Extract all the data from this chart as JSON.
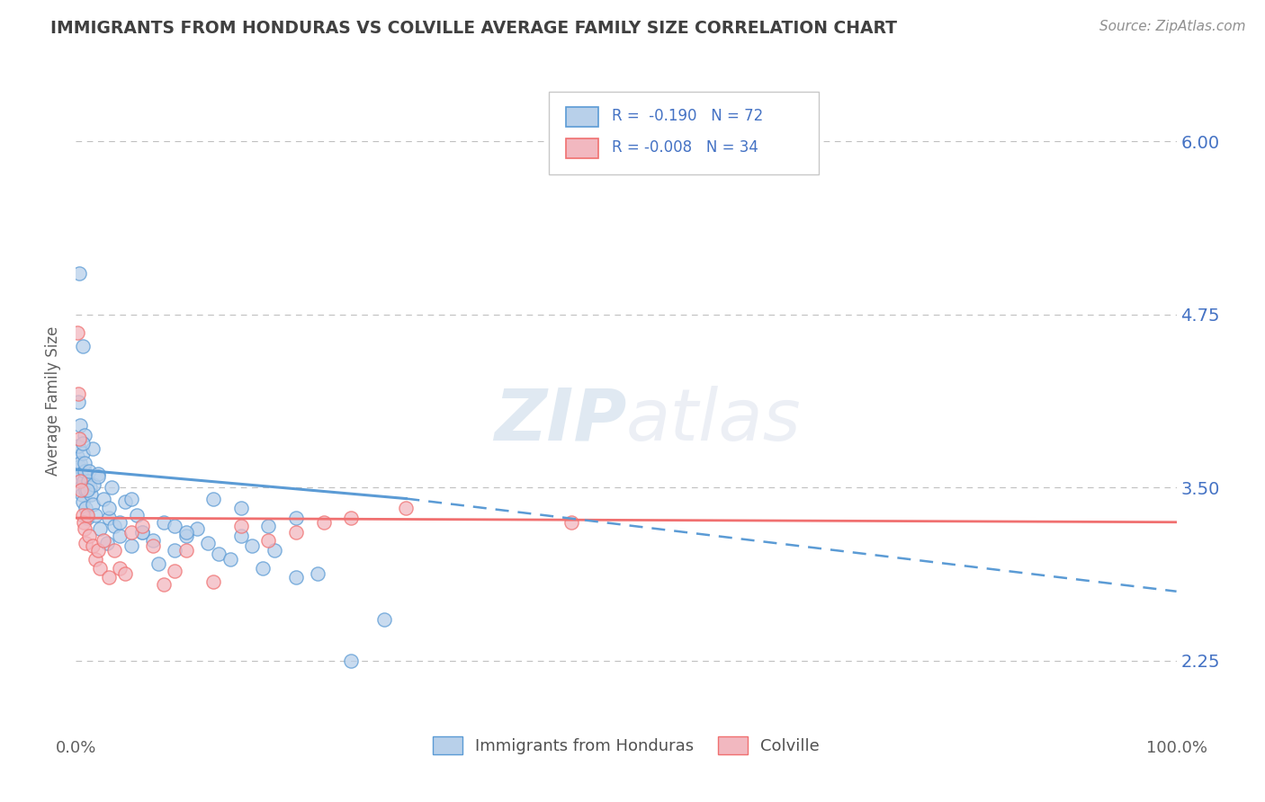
{
  "title": "IMMIGRANTS FROM HONDURAS VS COLVILLE AVERAGE FAMILY SIZE CORRELATION CHART",
  "source_text": "Source: ZipAtlas.com",
  "ylabel": "Average Family Size",
  "watermark": "ZIPatlas",
  "xlim": [
    0.0,
    100.0
  ],
  "ylim": [
    1.75,
    6.5
  ],
  "yticks": [
    2.25,
    3.5,
    4.75,
    6.0
  ],
  "xticklabels": [
    "0.0%",
    "100.0%"
  ],
  "xtick_vals": [
    0.0,
    100.0
  ],
  "legend_line1": "R =  -0.190   N = 72",
  "legend_line2": "R = -0.008   N = 34",
  "blue_color": "#5b9bd5",
  "pink_color": "#f07070",
  "blue_fill": "#b8d0ea",
  "pink_fill": "#f2b8c0",
  "title_color": "#404040",
  "right_tick_color": "#4472C4",
  "legend_text_color": "#4472C4",
  "source_color": "#909090",
  "grid_color": "#c0c0c0",
  "blue_scatter": [
    [
      0.15,
      3.72
    ],
    [
      0.2,
      3.58
    ],
    [
      0.25,
      3.8
    ],
    [
      0.3,
      3.65
    ],
    [
      0.35,
      3.55
    ],
    [
      0.4,
      3.68
    ],
    [
      0.45,
      3.6
    ],
    [
      0.5,
      3.5
    ],
    [
      0.55,
      3.45
    ],
    [
      0.6,
      3.75
    ],
    [
      0.65,
      3.4
    ],
    [
      0.7,
      3.55
    ],
    [
      0.75,
      3.62
    ],
    [
      0.8,
      3.68
    ],
    [
      0.85,
      3.48
    ],
    [
      0.9,
      3.35
    ],
    [
      1.0,
      3.28
    ],
    [
      1.1,
      3.55
    ],
    [
      1.2,
      3.62
    ],
    [
      1.3,
      3.5
    ],
    [
      1.4,
      3.45
    ],
    [
      1.5,
      3.38
    ],
    [
      1.6,
      3.52
    ],
    [
      1.8,
      3.3
    ],
    [
      2.0,
      3.6
    ],
    [
      2.2,
      3.2
    ],
    [
      2.5,
      3.42
    ],
    [
      2.8,
      3.1
    ],
    [
      3.0,
      3.28
    ],
    [
      3.2,
      3.5
    ],
    [
      3.5,
      3.22
    ],
    [
      4.0,
      3.15
    ],
    [
      4.5,
      3.4
    ],
    [
      5.0,
      3.08
    ],
    [
      5.5,
      3.3
    ],
    [
      6.0,
      3.18
    ],
    [
      7.0,
      3.12
    ],
    [
      8.0,
      3.25
    ],
    [
      9.0,
      3.05
    ],
    [
      10.0,
      3.15
    ],
    [
      11.0,
      3.2
    ],
    [
      12.0,
      3.1
    ],
    [
      13.0,
      3.02
    ],
    [
      14.0,
      2.98
    ],
    [
      15.0,
      3.15
    ],
    [
      16.0,
      3.08
    ],
    [
      17.0,
      2.92
    ],
    [
      18.0,
      3.05
    ],
    [
      20.0,
      2.85
    ],
    [
      22.0,
      2.88
    ],
    [
      0.3,
      5.05
    ],
    [
      0.6,
      4.52
    ],
    [
      0.4,
      3.95
    ],
    [
      0.75,
      3.88
    ],
    [
      1.5,
      3.78
    ],
    [
      0.25,
      4.12
    ],
    [
      0.6,
      3.82
    ],
    [
      1.0,
      3.48
    ],
    [
      2.0,
      3.58
    ],
    [
      3.0,
      3.35
    ],
    [
      4.0,
      3.25
    ],
    [
      5.0,
      3.42
    ],
    [
      6.0,
      3.18
    ],
    [
      7.5,
      2.95
    ],
    [
      9.0,
      3.22
    ],
    [
      10.0,
      3.18
    ],
    [
      12.5,
      3.42
    ],
    [
      15.0,
      3.35
    ],
    [
      17.5,
      3.22
    ],
    [
      20.0,
      3.28
    ],
    [
      25.0,
      2.25
    ],
    [
      28.0,
      2.55
    ]
  ],
  "pink_scatter": [
    [
      0.1,
      4.62
    ],
    [
      0.2,
      4.18
    ],
    [
      0.3,
      3.85
    ],
    [
      0.4,
      3.55
    ],
    [
      0.5,
      3.48
    ],
    [
      0.6,
      3.3
    ],
    [
      0.7,
      3.25
    ],
    [
      0.8,
      3.2
    ],
    [
      0.9,
      3.1
    ],
    [
      1.0,
      3.3
    ],
    [
      1.2,
      3.15
    ],
    [
      1.5,
      3.08
    ],
    [
      1.8,
      2.98
    ],
    [
      2.0,
      3.05
    ],
    [
      2.2,
      2.92
    ],
    [
      2.5,
      3.12
    ],
    [
      3.0,
      2.85
    ],
    [
      3.5,
      3.05
    ],
    [
      4.0,
      2.92
    ],
    [
      4.5,
      2.88
    ],
    [
      5.0,
      3.18
    ],
    [
      6.0,
      3.22
    ],
    [
      7.0,
      3.08
    ],
    [
      8.0,
      2.8
    ],
    [
      9.0,
      2.9
    ],
    [
      10.0,
      3.05
    ],
    [
      12.5,
      2.82
    ],
    [
      15.0,
      3.22
    ],
    [
      17.5,
      3.12
    ],
    [
      20.0,
      3.18
    ],
    [
      22.5,
      3.25
    ],
    [
      25.0,
      3.28
    ],
    [
      30.0,
      3.35
    ],
    [
      45.0,
      3.25
    ]
  ],
  "blue_trendline_solid": [
    [
      0,
      3.63
    ],
    [
      30,
      3.42
    ]
  ],
  "blue_trendline_dashed": [
    [
      30,
      3.42
    ],
    [
      100,
      2.75
    ]
  ],
  "pink_trendline": [
    [
      0,
      3.28
    ],
    [
      100,
      3.25
    ]
  ]
}
